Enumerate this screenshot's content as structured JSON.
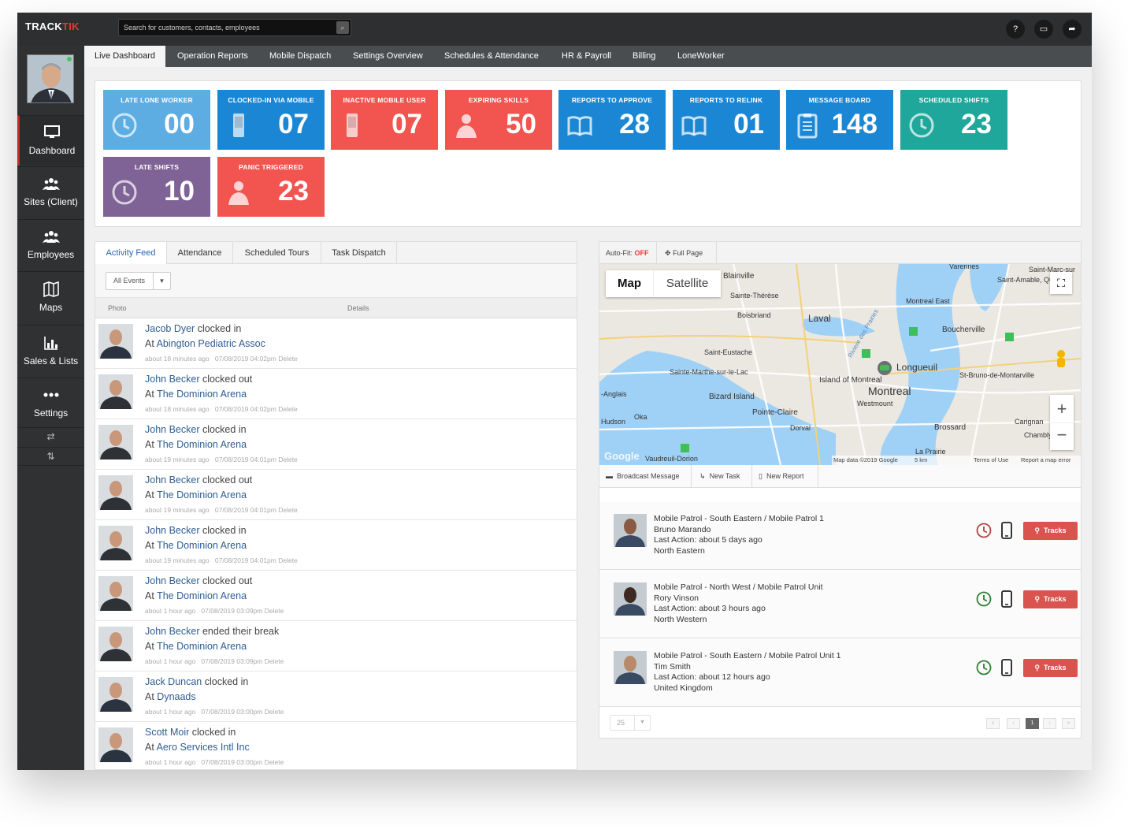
{
  "app": {
    "logo_a": "TRACK",
    "logo_b": "TIK"
  },
  "search": {
    "placeholder": "Search for customers, contacts, employees",
    "button_icon": "search-icon"
  },
  "topicons": [
    {
      "icon": "help-icon",
      "glyph": "?"
    },
    {
      "icon": "monitor-icon",
      "glyph": "▭"
    },
    {
      "icon": "share-icon",
      "glyph": "➦"
    }
  ],
  "sidebar": {
    "items": [
      {
        "label": "Dashboard",
        "icon": "monitor-icon",
        "active": true
      },
      {
        "label": "Sites (Client)",
        "icon": "users-icon"
      },
      {
        "label": "Employees",
        "icon": "users-icon"
      },
      {
        "label": "Maps",
        "icon": "map-icon"
      },
      {
        "label": "Sales & Lists",
        "icon": "bar-chart-icon"
      },
      {
        "label": "Settings",
        "icon": "more-icon"
      }
    ],
    "swap_glyph": "⇄",
    "sort_glyph": "⇅"
  },
  "menu": {
    "tabs": [
      "Live Dashboard",
      "Operation Reports",
      "Mobile Dispatch",
      "Settings Overview",
      "Schedules & Attendance",
      "HR & Payroll",
      "Billing",
      "LoneWorker"
    ]
  },
  "tiles": [
    {
      "title": "LATE LONE WORKER",
      "value": "00",
      "color": "#5dade2",
      "icon": "clock-icon"
    },
    {
      "title": "CLOCKED-IN VIA MOBILE",
      "value": "07",
      "color": "#1b87d4",
      "icon": "mobile-icon"
    },
    {
      "title": "INACTIVE MOBILE USER",
      "value": "07",
      "color": "#f2544f",
      "icon": "mobile-icon"
    },
    {
      "title": "EXPIRING SKILLS",
      "value": "50",
      "color": "#f2544f",
      "icon": "user-icon"
    },
    {
      "title": "REPORTS TO APPROVE",
      "value": "28",
      "color": "#1b87d4",
      "icon": "book-icon"
    },
    {
      "title": "REPORTS TO RELINK",
      "value": "01",
      "color": "#1b87d4",
      "icon": "book-icon"
    },
    {
      "title": "MESSAGE BOARD",
      "value": "148",
      "color": "#1b87d4",
      "icon": "clipboard-icon"
    },
    {
      "title": "SCHEDULED SHIFTS",
      "value": "23",
      "color": "#1ea79a",
      "icon": "clock-icon"
    },
    {
      "title": "LATE SHIFTS",
      "value": "10",
      "color": "#7f6396",
      "icon": "clock-icon"
    },
    {
      "title": "PANIC TRIGGERED",
      "value": "23",
      "color": "#f2544f",
      "icon": "user-icon"
    }
  ],
  "feed": {
    "tabs": [
      "Activity Feed",
      "Attendance",
      "Scheduled Tours",
      "Task Dispatch"
    ],
    "filter": "All Events",
    "col_photo": "Photo",
    "col_details": "Details",
    "rows": [
      {
        "name": "Jacob Dyer",
        "action": " clocked in",
        "site": "Abington Pediatric Assoc",
        "ago": "about 18 minutes ago",
        "date": "07/08/2019 04:02pm",
        "delete": "Delete"
      },
      {
        "name": "John Becker",
        "action": " clocked out",
        "site": "The Dominion Arena",
        "ago": "about 18 minutes ago",
        "date": "07/08/2019 04:02pm",
        "delete": "Delete"
      },
      {
        "name": "John Becker",
        "action": " clocked in",
        "site": "The Dominion Arena",
        "ago": "about 19 minutes ago",
        "date": "07/08/2019 04:01pm",
        "delete": "Delete"
      },
      {
        "name": "John Becker",
        "action": " clocked out",
        "site": "The Dominion Arena",
        "ago": "about 19 minutes ago",
        "date": "07/08/2019 04:01pm",
        "delete": "Delete"
      },
      {
        "name": "John Becker",
        "action": " clocked in",
        "site": "The Dominion Arena",
        "ago": "about 19 minutes ago",
        "date": "07/08/2019 04:01pm",
        "delete": "Delete"
      },
      {
        "name": "John Becker",
        "action": " clocked out",
        "site": "The Dominion Arena",
        "ago": "about 1 hour ago",
        "date": "07/08/2019 03:09pm",
        "delete": "Delete"
      },
      {
        "name": "John Becker",
        "action": " ended their break",
        "site": "The Dominion Arena",
        "ago": "about 1 hour ago",
        "date": "07/08/2019 03:09pm",
        "delete": "Delete"
      },
      {
        "name": "Jack Duncan",
        "action": " clocked in",
        "site": "Dynaads",
        "ago": "about 1 hour ago",
        "date": "07/08/2019 03:00pm",
        "delete": "Delete"
      },
      {
        "name": "Scott Moir",
        "action": " clocked in",
        "site": "Aero Services Intl Inc",
        "ago": "about 1 hour ago",
        "date": "07/08/2019 03:00pm",
        "delete": "Delete"
      }
    ],
    "at": "At "
  },
  "map": {
    "autofit_label": "Auto-Fit:",
    "autofit_value": "OFF",
    "fullpage": "Full Page",
    "tab_map": "Map",
    "tab_satellite": "Satellite",
    "labels": [
      "Blainville",
      "Sainte-Thérèse",
      "Boisbriand",
      "Laval",
      "Saint-Eustache",
      "Sainte-Marthe-sur-le-Lac",
      "Island of Montreal",
      "Bizard Island",
      "Montreal",
      "Westmount",
      "Pointe-Claire",
      "Dorval",
      "Longueuil",
      "Boucherville",
      "Montreal East",
      "St-Bruno-de-Montarville",
      "Brossard",
      "Carignan",
      "Chambly",
      "La Prairie",
      "Varennes",
      "Saint-Marc-sur",
      "Saint-Amable, Quebec",
      "Oka",
      "Hudson",
      "Vaudreuil-Dorion",
      "-Anglais",
      "Riviere des Prairies"
    ],
    "footer": "Map data ©2019 Google",
    "scale": "5 km",
    "terms": "Terms of Use",
    "report": "Report a map error",
    "google": "Google"
  },
  "actions": {
    "broadcast": "Broadcast Message",
    "newtask": "New Task",
    "newreport": "New Report"
  },
  "patrols": [
    {
      "title": "Mobile Patrol - South Eastern / Mobile Patrol 1",
      "name": "Bruno Marando",
      "last": "Last Action: about 5 days ago",
      "region": "North Eastern",
      "clock_color": "#b5433e",
      "button": "Tracks"
    },
    {
      "title": "Mobile Patrol - North West / Mobile Patrol Unit",
      "name": "Rory Vinson",
      "last": "Last Action: about 3 hours ago",
      "region": "North Western",
      "clock_color": "#2e7d32",
      "button": "Tracks"
    },
    {
      "title": "Mobile Patrol - South Eastern / Mobile Patrol Unit 1",
      "name": "Tim Smith",
      "last": "Last Action: about 12 hours ago",
      "region": "United Kingdom",
      "clock_color": "#2e7d32",
      "button": "Tracks"
    }
  ],
  "pager": {
    "size": "25",
    "current": "1",
    "first": "«",
    "prev": "‹",
    "next": "›",
    "last": "»"
  }
}
